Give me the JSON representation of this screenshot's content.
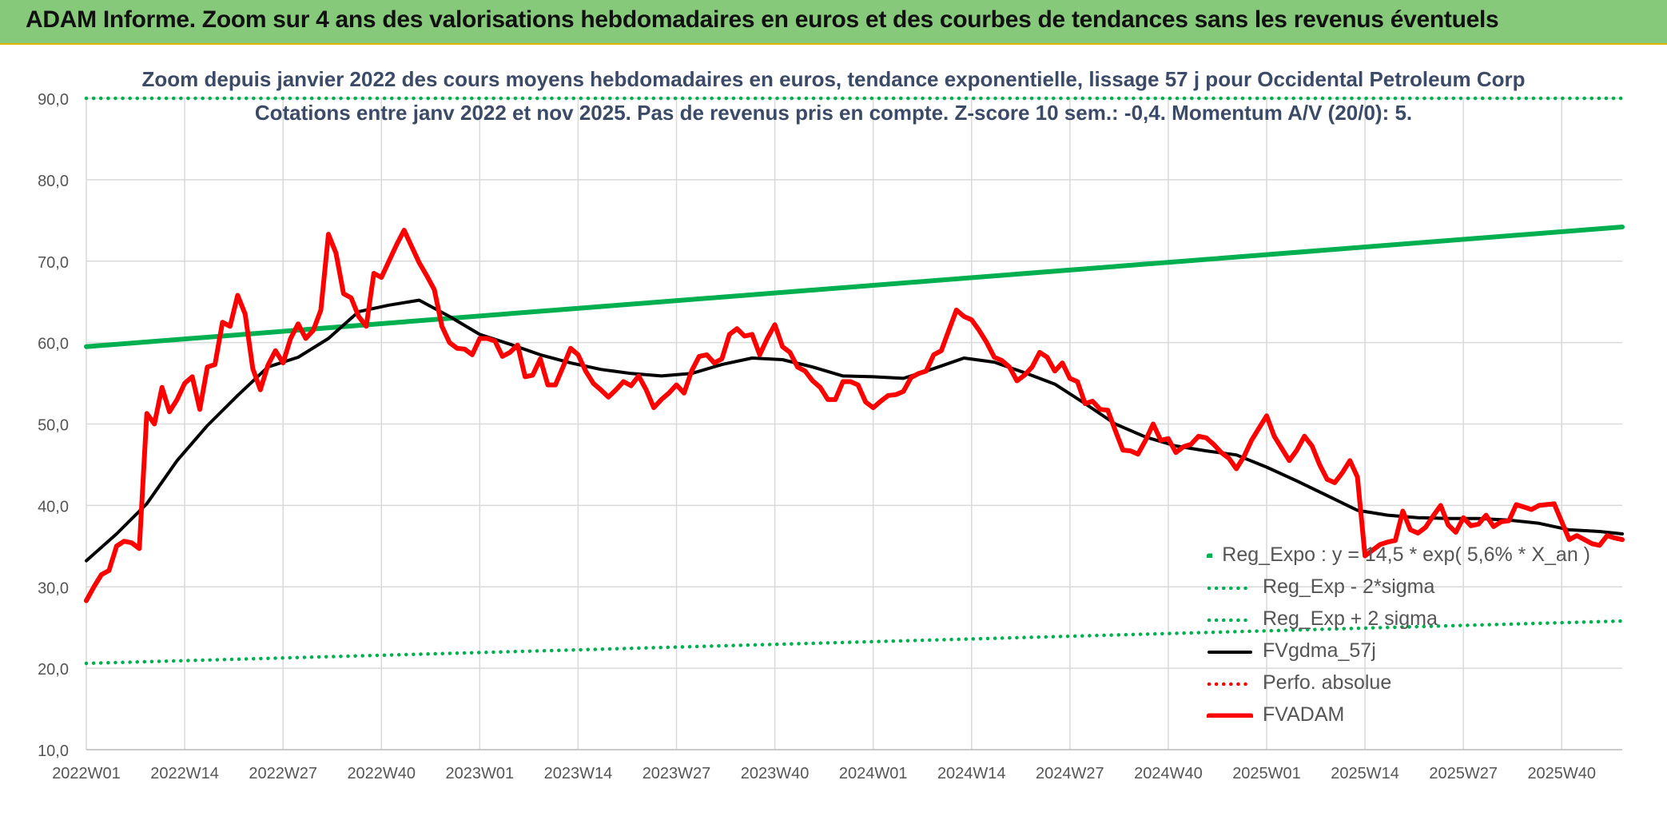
{
  "header": {
    "title": "ADAM Informe. Zoom sur 4 ans des valorisations hebdomadaires en euros et des courbes de tendances sans les revenus éventuels"
  },
  "chart_data": {
    "type": "line",
    "title": "Zoom depuis janvier 2022 des cours moyens hebdomadaires en euros, tendance exponentielle, lissage 57 j pour Occidental Petroleum Corp",
    "subtitle": "Cotations entre janv 2022 et nov 2025. Pas de revenus pris en compte. Z-score 10 sem.: -0,4. Momentum A/V (20/0): 5.",
    "xlabel": "",
    "ylabel": "",
    "ylim": [
      10,
      90
    ],
    "yticks": [
      "10,0",
      "20,0",
      "30,0",
      "40,0",
      "50,0",
      "60,0",
      "70,0",
      "80,0",
      "90,0"
    ],
    "xticks": [
      "2022W01",
      "2022W14",
      "2022W27",
      "2022W40",
      "2023W01",
      "2023W14",
      "2023W27",
      "2023W40",
      "2024W01",
      "2024W14",
      "2024W27",
      "2024W40",
      "2025W01",
      "2025W14",
      "2025W27",
      "2025W40"
    ],
    "grid": true,
    "legend_position": "bottom-right",
    "series": [
      {
        "name": "Reg_Expo : y = 14,5 * exp( 5,6% *  X_an )",
        "color": "#00b050",
        "style": "solid",
        "x": [
          0,
          203
        ],
        "values": [
          59.5,
          74.2
        ]
      },
      {
        "name": "Reg_Exp - 2*sigma",
        "color": "#00b050",
        "style": "dotted",
        "x": [
          0,
          203
        ],
        "values": [
          20.6,
          25.8
        ]
      },
      {
        "name": "Reg_Exp + 2 sigma",
        "color": "#00b050",
        "style": "dotted",
        "x": [
          0,
          203
        ],
        "values": [
          90,
          90
        ]
      },
      {
        "name": "FVgdma_57j",
        "color": "#000000",
        "style": "solid",
        "x": [
          0,
          4,
          8,
          12,
          16,
          20,
          24,
          28,
          32,
          36,
          40,
          44,
          48,
          52,
          56,
          60,
          64,
          68,
          72,
          76,
          80,
          84,
          88,
          92,
          96,
          100,
          104,
          108,
          112,
          116,
          120,
          124,
          128,
          132,
          136,
          140,
          144,
          148,
          152,
          156,
          160,
          164,
          168,
          172,
          176,
          180,
          184,
          188,
          192,
          196,
          200,
          203
        ],
        "values": [
          33.2,
          36.5,
          40.2,
          45.5,
          49.8,
          53.5,
          57.0,
          58.2,
          60.5,
          63.8,
          64.6,
          65.2,
          63.2,
          61.0,
          59.8,
          58.5,
          57.5,
          56.7,
          56.2,
          55.9,
          56.2,
          57.3,
          58.1,
          57.9,
          57.0,
          55.9,
          55.8,
          55.6,
          56.8,
          58.1,
          57.6,
          56.3,
          54.9,
          52.5,
          50.0,
          48.4,
          47.3,
          46.7,
          46.2,
          44.7,
          43.0,
          41.2,
          39.4,
          38.8,
          38.5,
          38.4,
          38.4,
          38.2,
          37.8,
          37.0,
          36.8,
          36.5
        ]
      },
      {
        "name": "Perfo. absolue",
        "color": "#ff0000",
        "style": "dotted",
        "x": [],
        "values": []
      },
      {
        "name": "FVADAM",
        "color": "#ff0000",
        "style": "solid",
        "x": [
          0,
          1,
          2,
          3,
          4,
          5,
          6,
          7,
          8,
          9,
          10,
          11,
          12,
          13,
          14,
          15,
          16,
          17,
          18,
          19,
          20,
          21,
          22,
          23,
          24,
          25,
          26,
          27,
          28,
          29,
          30,
          31,
          32,
          33,
          34,
          35,
          36,
          37,
          38,
          39,
          40,
          41,
          42,
          43,
          44,
          45,
          46,
          47,
          48,
          49,
          50,
          51,
          52,
          53,
          54,
          55,
          56,
          57,
          58,
          59,
          60,
          61,
          62,
          63,
          64,
          65,
          66,
          67,
          68,
          69,
          70,
          71,
          72,
          73,
          74,
          75,
          76,
          77,
          78,
          79,
          80,
          81,
          82,
          83,
          84,
          85,
          86,
          87,
          88,
          89,
          90,
          91,
          92,
          93,
          94,
          95,
          96,
          97,
          98,
          99,
          100,
          101,
          102,
          103,
          104,
          105,
          106,
          107,
          108,
          109,
          110,
          111,
          112,
          113,
          114,
          115,
          116,
          117,
          118,
          119,
          120,
          121,
          122,
          123,
          124,
          125,
          126,
          127,
          128,
          129,
          130,
          131,
          132,
          133,
          134,
          135,
          136,
          137,
          138,
          139,
          140,
          141,
          142,
          143,
          144,
          145,
          146,
          147,
          148,
          149,
          150,
          151,
          152,
          153,
          154,
          155,
          156,
          157,
          158,
          159,
          160,
          161,
          162,
          163,
          164,
          165,
          166,
          167,
          168,
          169,
          170,
          171,
          172,
          173,
          174,
          175,
          176,
          177,
          178,
          179,
          180,
          181,
          182,
          183,
          184,
          185,
          186,
          187,
          188,
          189,
          190,
          191,
          192,
          193,
          194,
          195,
          196,
          197,
          198,
          199,
          200,
          201,
          202,
          203
        ],
        "values": [
          28.3,
          30.0,
          31.5,
          32.0,
          35.0,
          35.6,
          35.4,
          34.7,
          51.3,
          50.0,
          54.5,
          51.5,
          53.0,
          55.0,
          55.8,
          51.8,
          57.0,
          57.3,
          62.5,
          62.0,
          65.8,
          63.5,
          56.8,
          54.2,
          57.2,
          59.0,
          57.5,
          60.5,
          62.3,
          60.5,
          61.5,
          64.0,
          73.3,
          71.0,
          66.0,
          65.5,
          63.2,
          62.0,
          68.5,
          68.0,
          70.0,
          72.0,
          73.8,
          71.8,
          69.8,
          68.2,
          66.5,
          62.0,
          60.0,
          59.3,
          59.2,
          58.5,
          60.5,
          60.5,
          60.2,
          58.3,
          58.8,
          59.7,
          55.8,
          56.0,
          58.0,
          54.8,
          54.8,
          57.0,
          59.3,
          58.5,
          56.5,
          55.0,
          54.2,
          53.3,
          54.2,
          55.2,
          54.7,
          55.9,
          54.2,
          52.0,
          53.0,
          53.8,
          54.8,
          53.8,
          56.5,
          58.3,
          58.5,
          57.5,
          58.0,
          61.0,
          61.7,
          60.8,
          61.0,
          58.5,
          60.5,
          62.2,
          59.5,
          58.8,
          57.0,
          56.5,
          55.3,
          54.5,
          53.0,
          53.0,
          55.2,
          55.2,
          54.8,
          52.7,
          52.0,
          52.8,
          53.5,
          53.6,
          54.0,
          55.7,
          56.2,
          56.5,
          58.5,
          59.0,
          61.5,
          64.0,
          63.2,
          62.8,
          61.5,
          60.0,
          58.2,
          57.8,
          57.0,
          55.3,
          56.0,
          57.0,
          58.8,
          58.2,
          56.5,
          57.5,
          55.6,
          55.2,
          52.5,
          52.8,
          51.8,
          51.7,
          49.2,
          46.8,
          46.7,
          46.3,
          48.0,
          50.0,
          48.0,
          48.2,
          46.5,
          47.2,
          47.5,
          48.5,
          48.3,
          47.5,
          46.5,
          45.8,
          44.5,
          46.0,
          48.0,
          49.5,
          51.0,
          48.5,
          47.0,
          45.5,
          46.8,
          48.5,
          47.3,
          45.0,
          43.2,
          42.8,
          44.0,
          45.5,
          43.5,
          33.8,
          34.5,
          35.2,
          35.5,
          35.7,
          39.3,
          37.0,
          36.6,
          37.3,
          38.7,
          40.0,
          37.6,
          36.7,
          38.5,
          37.5,
          37.7,
          38.8,
          37.4,
          38.0,
          38.1,
          40.1,
          39.8,
          39.5,
          40.0,
          40.1,
          40.2,
          38.0,
          35.8,
          36.3,
          35.8,
          35.3,
          35.1,
          36.3,
          36.0,
          35.8
        ]
      }
    ]
  }
}
